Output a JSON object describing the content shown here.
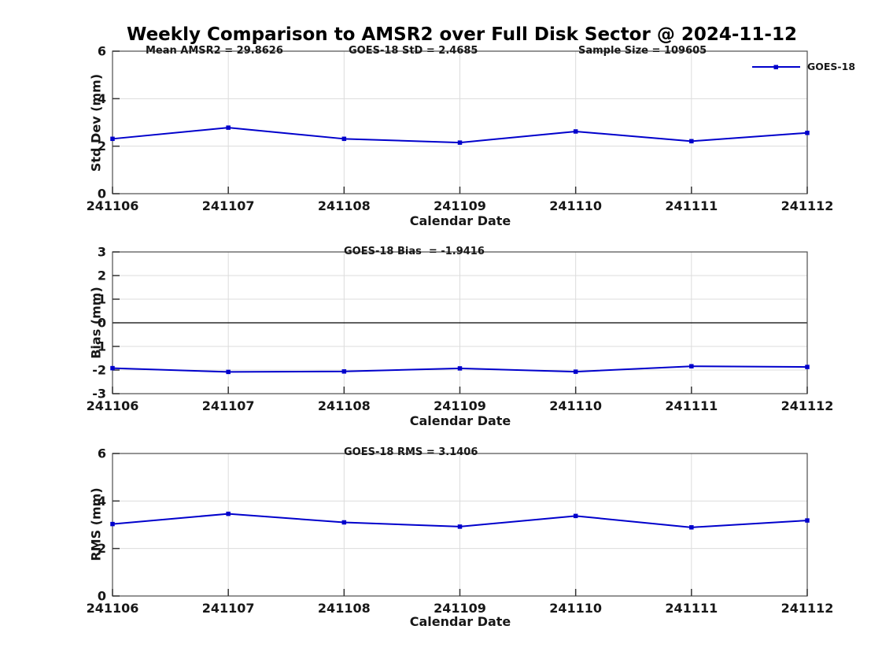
{
  "page": {
    "title": "Weekly Comparison to AMSR2 over Full Disk Sector @ 2024-11-12"
  },
  "legend": {
    "label": "GOES-18"
  },
  "colors": {
    "line": "#0000CC",
    "grid": "#DCDCDC",
    "axis": "#4D4D4D",
    "tick": "#333333",
    "zero_line": "#000000",
    "text": "#171717"
  },
  "chart_data": [
    {
      "type": "line",
      "name": "std-dev",
      "ylabel": "Std Dev (mm)",
      "xlabel": "Calendar Date",
      "categories": [
        "241106",
        "241107",
        "241108",
        "241109",
        "241110",
        "241111",
        "241112"
      ],
      "series": [
        {
          "name": "GOES-18",
          "values": [
            2.31,
            2.78,
            2.31,
            2.15,
            2.62,
            2.21,
            2.56
          ]
        }
      ],
      "ylim": [
        0,
        6
      ],
      "yticks": [
        0,
        2,
        4,
        6
      ],
      "grid": true,
      "legend_position": "top-right-outside",
      "annotations": [
        "Mean AMSR2 = 29.8626",
        "GOES-18 StD = 2.4685",
        "Sample Size = 109605"
      ]
    },
    {
      "type": "line",
      "name": "bias",
      "ylabel": "Bias (mm)",
      "xlabel": "Calendar Date",
      "categories": [
        "241106",
        "241107",
        "241108",
        "241109",
        "241110",
        "241111",
        "241112"
      ],
      "series": [
        {
          "name": "GOES-18",
          "values": [
            -1.92,
            -2.08,
            -2.06,
            -1.93,
            -2.07,
            -1.84,
            -1.87
          ]
        }
      ],
      "ylim": [
        -3,
        3
      ],
      "yticks": [
        -3,
        -2,
        -1,
        0,
        1,
        2,
        3
      ],
      "grid": true,
      "zero_line": true,
      "annotations": [
        "GOES-18 Bias  = -1.9416"
      ]
    },
    {
      "type": "line",
      "name": "rms",
      "ylabel": "RMS (mm)",
      "xlabel": "Calendar Date",
      "categories": [
        "241106",
        "241107",
        "241108",
        "241109",
        "241110",
        "241111",
        "241112"
      ],
      "series": [
        {
          "name": "GOES-18",
          "values": [
            3.03,
            3.46,
            3.1,
            2.92,
            3.37,
            2.89,
            3.18
          ]
        }
      ],
      "ylim": [
        0,
        6
      ],
      "yticks": [
        0,
        2,
        4,
        6
      ],
      "grid": true,
      "annotations": [
        "GOES-18 RMS = 3.1406"
      ]
    }
  ]
}
